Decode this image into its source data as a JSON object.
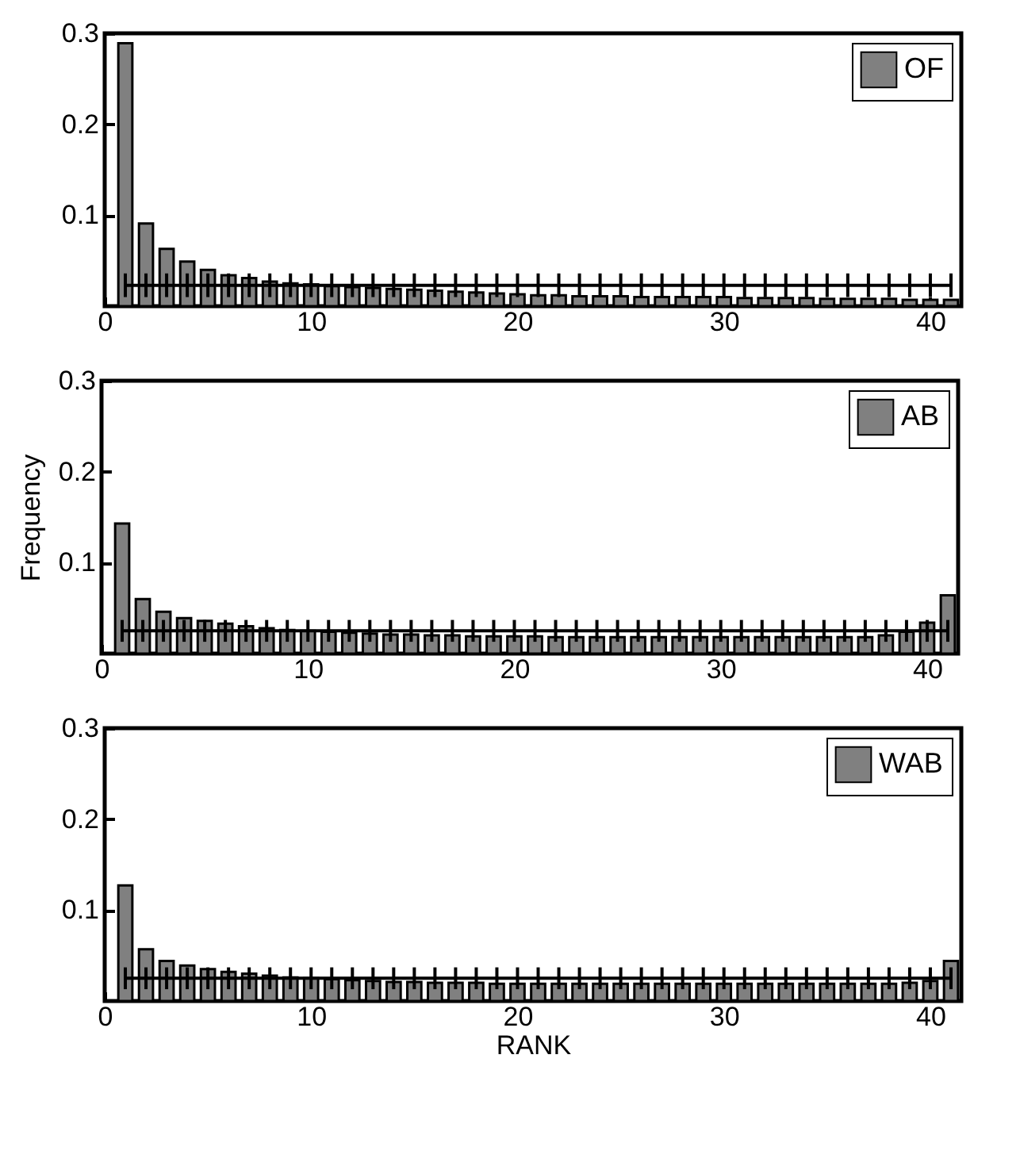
{
  "chart_data": [
    {
      "type": "bar",
      "x": [
        1,
        2,
        3,
        4,
        5,
        6,
        7,
        8,
        9,
        10,
        11,
        12,
        13,
        14,
        15,
        16,
        17,
        18,
        19,
        20,
        21,
        22,
        23,
        24,
        25,
        26,
        27,
        28,
        29,
        30,
        31,
        32,
        33,
        34,
        35,
        36,
        37,
        38,
        39,
        40,
        41
      ],
      "xlim": [
        0,
        41.5
      ],
      "xticks": [
        0,
        10,
        20,
        30,
        40
      ],
      "ylim": [
        0,
        0.3
      ],
      "yticks": [
        0.1,
        0.2,
        0.3
      ],
      "legend": "top right",
      "series": [
        {
          "name": "OF",
          "color": "#808080",
          "values": [
            0.289,
            0.091,
            0.063,
            0.049,
            0.04,
            0.034,
            0.031,
            0.027,
            0.025,
            0.024,
            0.022,
            0.021,
            0.02,
            0.019,
            0.018,
            0.017,
            0.016,
            0.015,
            0.014,
            0.013,
            0.012,
            0.012,
            0.011,
            0.011,
            0.011,
            0.01,
            0.01,
            0.01,
            0.01,
            0.01,
            0.009,
            0.009,
            0.009,
            0.009,
            0.008,
            0.008,
            0.008,
            0.008,
            0.007,
            0.007,
            0.007
          ]
        },
        {
          "type": "line",
          "color": "#000000",
          "values": [
            0.023,
            0.023,
            0.023,
            0.023,
            0.023,
            0.023,
            0.023,
            0.023,
            0.023,
            0.023,
            0.023,
            0.023,
            0.023,
            0.023,
            0.023,
            0.023,
            0.023,
            0.023,
            0.023,
            0.023,
            0.023,
            0.023,
            0.023,
            0.023,
            0.023,
            0.023,
            0.023,
            0.023,
            0.023,
            0.023,
            0.023,
            0.023,
            0.023,
            0.023,
            0.023,
            0.023,
            0.023,
            0.023,
            0.023,
            0.023,
            0.023
          ],
          "errors": [
            0.013,
            0.013,
            0.013,
            0.013,
            0.013,
            0.013,
            0.013,
            0.013,
            0.013,
            0.013,
            0.013,
            0.013,
            0.013,
            0.013,
            0.013,
            0.013,
            0.013,
            0.013,
            0.013,
            0.013,
            0.013,
            0.013,
            0.013,
            0.013,
            0.013,
            0.013,
            0.013,
            0.013,
            0.013,
            0.013,
            0.013,
            0.013,
            0.013,
            0.013,
            0.013,
            0.013,
            0.013,
            0.013,
            0.013,
            0.013,
            0.013
          ]
        }
      ]
    },
    {
      "type": "bar",
      "ylabel": "Frequency",
      "x": [
        1,
        2,
        3,
        4,
        5,
        6,
        7,
        8,
        9,
        10,
        11,
        12,
        13,
        14,
        15,
        16,
        17,
        18,
        19,
        20,
        21,
        22,
        23,
        24,
        25,
        26,
        27,
        28,
        29,
        30,
        31,
        32,
        33,
        34,
        35,
        36,
        37,
        38,
        39,
        40,
        41
      ],
      "xlim": [
        0,
        41.5
      ],
      "xticks": [
        0,
        10,
        20,
        30,
        40
      ],
      "ylim": [
        0,
        0.3
      ],
      "yticks": [
        0.1,
        0.2,
        0.3
      ],
      "legend": "top right",
      "series": [
        {
          "name": "AB",
          "color": "#808080",
          "values": [
            0.143,
            0.06,
            0.046,
            0.039,
            0.036,
            0.033,
            0.03,
            0.028,
            0.026,
            0.025,
            0.024,
            0.023,
            0.022,
            0.021,
            0.021,
            0.02,
            0.02,
            0.019,
            0.019,
            0.019,
            0.019,
            0.018,
            0.018,
            0.018,
            0.018,
            0.018,
            0.018,
            0.018,
            0.018,
            0.018,
            0.018,
            0.018,
            0.018,
            0.018,
            0.018,
            0.018,
            0.018,
            0.02,
            0.024,
            0.034,
            0.064
          ]
        },
        {
          "type": "line",
          "color": "#000000",
          "values": [
            0.025,
            0.025,
            0.025,
            0.025,
            0.025,
            0.025,
            0.025,
            0.025,
            0.025,
            0.025,
            0.025,
            0.025,
            0.025,
            0.025,
            0.025,
            0.025,
            0.025,
            0.025,
            0.025,
            0.025,
            0.025,
            0.025,
            0.025,
            0.025,
            0.025,
            0.025,
            0.025,
            0.025,
            0.025,
            0.025,
            0.025,
            0.025,
            0.025,
            0.025,
            0.025,
            0.025,
            0.025,
            0.025,
            0.025,
            0.025,
            0.025
          ],
          "errors": [
            0.012,
            0.012,
            0.012,
            0.012,
            0.012,
            0.012,
            0.012,
            0.012,
            0.012,
            0.012,
            0.012,
            0.012,
            0.012,
            0.012,
            0.012,
            0.012,
            0.012,
            0.012,
            0.012,
            0.012,
            0.012,
            0.012,
            0.012,
            0.012,
            0.012,
            0.012,
            0.012,
            0.012,
            0.012,
            0.012,
            0.012,
            0.012,
            0.012,
            0.012,
            0.012,
            0.012,
            0.012,
            0.012,
            0.012,
            0.012,
            0.012
          ]
        }
      ]
    },
    {
      "type": "bar",
      "xlabel": "RANK",
      "x": [
        1,
        2,
        3,
        4,
        5,
        6,
        7,
        8,
        9,
        10,
        11,
        12,
        13,
        14,
        15,
        16,
        17,
        18,
        19,
        20,
        21,
        22,
        23,
        24,
        25,
        26,
        27,
        28,
        29,
        30,
        31,
        32,
        33,
        34,
        35,
        36,
        37,
        38,
        39,
        40,
        41
      ],
      "xlim": [
        0,
        41.5
      ],
      "xticks": [
        0,
        10,
        20,
        30,
        40
      ],
      "ylim": [
        0,
        0.3
      ],
      "yticks": [
        0.1,
        0.2,
        0.3
      ],
      "legend": "top right",
      "series": [
        {
          "name": "WAB",
          "color": "#808080",
          "values": [
            0.127,
            0.057,
            0.044,
            0.039,
            0.035,
            0.032,
            0.03,
            0.028,
            0.026,
            0.025,
            0.024,
            0.023,
            0.022,
            0.021,
            0.021,
            0.02,
            0.02,
            0.02,
            0.019,
            0.019,
            0.019,
            0.019,
            0.019,
            0.019,
            0.019,
            0.019,
            0.019,
            0.019,
            0.019,
            0.019,
            0.019,
            0.019,
            0.019,
            0.019,
            0.019,
            0.019,
            0.019,
            0.019,
            0.02,
            0.022,
            0.044
          ]
        },
        {
          "type": "line",
          "color": "#000000",
          "values": [
            0.025,
            0.025,
            0.025,
            0.025,
            0.025,
            0.025,
            0.025,
            0.025,
            0.025,
            0.025,
            0.025,
            0.025,
            0.025,
            0.025,
            0.025,
            0.025,
            0.025,
            0.025,
            0.025,
            0.025,
            0.025,
            0.025,
            0.025,
            0.025,
            0.025,
            0.025,
            0.025,
            0.025,
            0.025,
            0.025,
            0.025,
            0.025,
            0.025,
            0.025,
            0.025,
            0.025,
            0.025,
            0.025,
            0.025,
            0.025,
            0.025
          ],
          "errors": [
            0.012,
            0.012,
            0.012,
            0.012,
            0.012,
            0.012,
            0.012,
            0.012,
            0.012,
            0.012,
            0.012,
            0.012,
            0.012,
            0.012,
            0.012,
            0.012,
            0.012,
            0.012,
            0.012,
            0.012,
            0.012,
            0.012,
            0.012,
            0.012,
            0.012,
            0.012,
            0.012,
            0.012,
            0.012,
            0.012,
            0.012,
            0.012,
            0.012,
            0.012,
            0.012,
            0.012,
            0.012,
            0.012,
            0.012,
            0.012,
            0.012
          ]
        }
      ]
    }
  ]
}
